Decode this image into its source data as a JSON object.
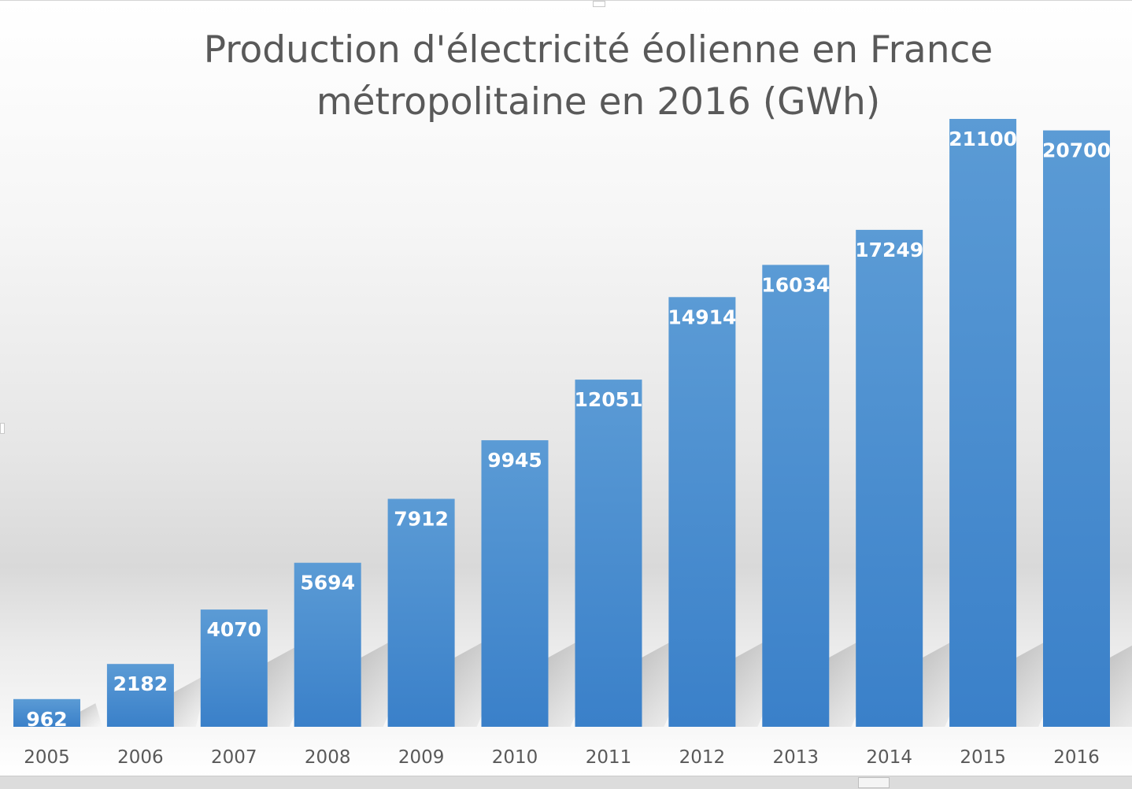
{
  "chart_data": {
    "type": "bar",
    "title_lines": [
      "Production d'électricité éolienne en France",
      "métropolitaine en 2016 (GWh)"
    ],
    "categories": [
      "2005",
      "2006",
      "2007",
      "2008",
      "2009",
      "2010",
      "2011",
      "2012",
      "2013",
      "2014",
      "2015",
      "2016"
    ],
    "values": [
      962,
      2182,
      4070,
      5694,
      7912,
      9945,
      12051,
      14914,
      16034,
      17249,
      21100,
      20700
    ],
    "xlabel": "",
    "ylabel": "",
    "ylim": [
      0,
      24000
    ],
    "grid": false,
    "legend": "none",
    "data_labels": "inside-end",
    "colors": {
      "bar_top": "#5b9bd5",
      "bar_bottom": "#3a80c9",
      "label": "#ffffff",
      "axis_text": "#595959"
    }
  }
}
